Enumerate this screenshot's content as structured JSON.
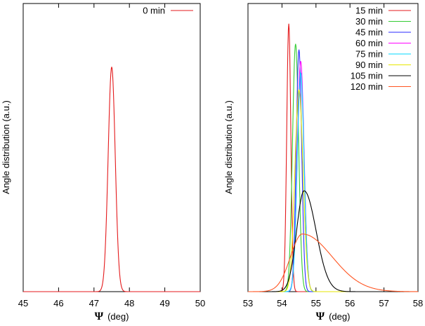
{
  "colors": {
    "0 min": "#e41a1c",
    "15 min": "#e41a1c",
    "30 min": "#33cc33",
    "45 min": "#2b2bff",
    "60 min": "#ff00ff",
    "75 min": "#00d8ff",
    "90 min": "#e6e600",
    "105 min": "#000000",
    "120 min": "#ff5522"
  },
  "chart_data": [
    {
      "type": "line",
      "title": "",
      "xlabel_symbol": "Ψ",
      "xlabel_unit": "(deg)",
      "ylabel": "Angle distribution (a.u.)",
      "xlim": [
        45,
        50
      ],
      "ylim": [
        0,
        1
      ],
      "xticks": [
        "45",
        "46",
        "47",
        "48",
        "49",
        "50"
      ],
      "legend_position": "top-right",
      "series": [
        {
          "name": "0 min",
          "color": "#e41a1c",
          "center": 47.5,
          "sigma": 0.1,
          "peak": 0.78,
          "tail": 0
        }
      ]
    },
    {
      "type": "line",
      "title": "",
      "xlabel_symbol": "Ψ",
      "xlabel_unit": "(deg)",
      "ylabel": "Angle distribution (a.u.)",
      "xlim": [
        53,
        58
      ],
      "ylim": [
        0,
        1
      ],
      "xticks": [
        "53",
        "54",
        "55",
        "56",
        "57",
        "58"
      ],
      "legend_position": "top-right",
      "series": [
        {
          "name": "15 min",
          "color": "#e41a1c",
          "center": 54.2,
          "sigma": 0.06,
          "peak": 0.93,
          "tail": 0
        },
        {
          "name": "30 min",
          "color": "#33cc33",
          "center": 54.4,
          "sigma": 0.09,
          "peak": 0.86,
          "tail": 0
        },
        {
          "name": "45 min",
          "color": "#2b2bff",
          "center": 54.5,
          "sigma": 0.08,
          "peak": 0.84,
          "tail": 0
        },
        {
          "name": "60 min",
          "color": "#ff00ff",
          "center": 54.55,
          "sigma": 0.1,
          "peak": 0.8,
          "tail": 0
        },
        {
          "name": "75 min",
          "color": "#00d8ff",
          "center": 54.55,
          "sigma": 0.1,
          "peak": 0.76,
          "tail": 0
        },
        {
          "name": "90 min",
          "color": "#e6e600",
          "center": 54.5,
          "sigma": 0.12,
          "peak": 0.7,
          "tail": 0
        },
        {
          "name": "105 min",
          "color": "#000000",
          "center": 54.65,
          "sigma": 0.22,
          "peak": 0.35,
          "tail": 0.6
        },
        {
          "name": "120 min",
          "color": "#ff5522",
          "center": 54.6,
          "sigma": 0.35,
          "peak": 0.2,
          "tail": 1.5
        }
      ]
    }
  ]
}
